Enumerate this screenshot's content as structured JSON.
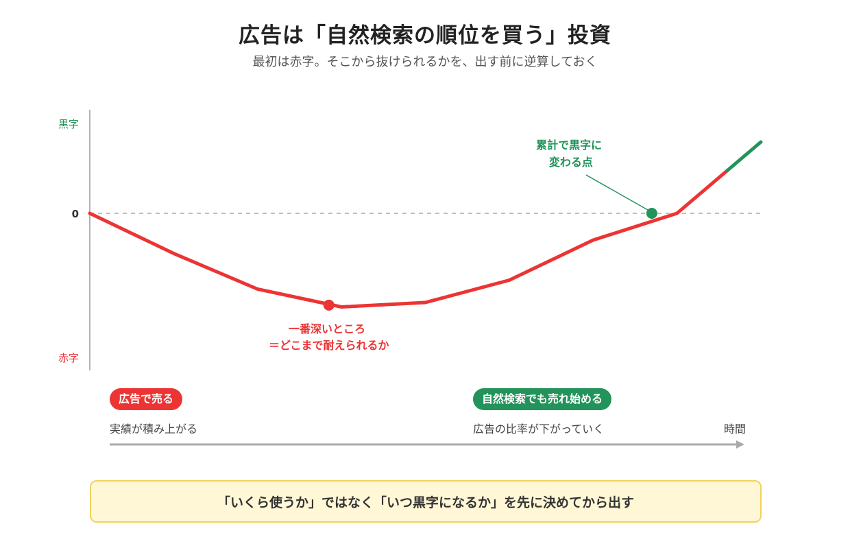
{
  "header": {
    "title": "広告は「自然検索の順位を買う」投資",
    "subtitle": "最初は赤字。そこから抜けられるかを、出す前に逆算しておく"
  },
  "chart_data": {
    "type": "line",
    "y_labels": {
      "top": "黒字",
      "zero": "0",
      "bottom": "赤字"
    },
    "x": [
      0,
      1,
      2,
      3,
      4,
      5,
      6,
      7,
      8
    ],
    "series": [
      {
        "values": [
          0,
          -0.45,
          -0.85,
          -1.05,
          -1.0,
          -0.75,
          -0.3,
          0.0,
          0.8
        ]
      }
    ],
    "ylim": [
      -1.6,
      1.0
    ],
    "xlim": [
      0,
      8
    ],
    "green_from_x": 7.6,
    "zero_line": "dashed",
    "colors": {
      "negative": "#ec3434",
      "positive": "#22935a",
      "axis": "#999999",
      "zero": "#aaaaaa"
    },
    "annotations": {
      "trough": {
        "x": 2.85,
        "y": -1.03,
        "lines": [
          "一番深いところ",
          "＝どこまで耐えられるか"
        ],
        "color": "#ec3434"
      },
      "breakeven": {
        "x": 6.7,
        "y": 0.0,
        "lines": [
          "累計で黒字に",
          "変わる点"
        ],
        "color": "#22935a"
      }
    }
  },
  "phases": [
    {
      "pill": "広告で売る",
      "desc": "実績が積み上がる",
      "color": "#ec3434"
    },
    {
      "pill": "自然検索でも売れ始める",
      "desc": "広告の比率が下がっていく",
      "color": "#22935a"
    }
  ],
  "x_axis_label": "時間",
  "footer": "「いくら使うか」ではなく「いつ黒字になるか」を先に決めてから出す"
}
